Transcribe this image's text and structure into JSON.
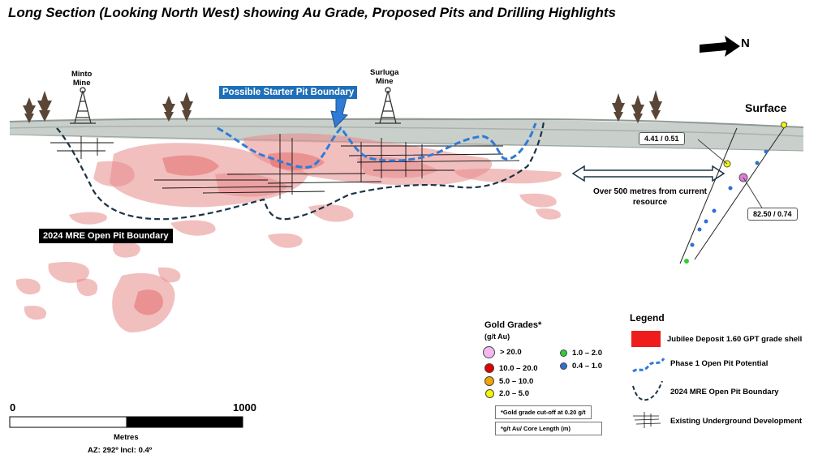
{
  "title": "Long Section (Looking North West) showing Au Grade, Proposed Pits and Drilling Highlights",
  "north_label": "N",
  "surface_label": "Surface",
  "mines": [
    {
      "name": "Minto\nMine"
    },
    {
      "name": "Surluga\nMine"
    }
  ],
  "starter_pit_label": "Possible Starter Pit Boundary",
  "mre_pit_label": "2024 MRE Open Pit Boundary",
  "distance_note": "Over 500 metres from current resource",
  "intercepts": [
    {
      "label": "4.41 / 0.51",
      "grade_class": "2.0 – 5.0"
    },
    {
      "label": "82.50 / 0.74",
      "grade_class": "> 20.0"
    }
  ],
  "gold_grades": {
    "title": "Gold Grades*",
    "unit": "(g/t Au)",
    "items": [
      {
        "label": "> 20.0",
        "color": "#f4b8f0"
      },
      {
        "label": "10.0 – 20.0",
        "color": "#e00000"
      },
      {
        "label": "5.0 – 10.0",
        "color": "#f2a500"
      },
      {
        "label": "2.0 – 5.0",
        "color": "#f5f500"
      },
      {
        "label": "1.0 – 2.0",
        "color": "#33cc33"
      },
      {
        "label": "0.4 – 1.0",
        "color": "#2f6fd0"
      }
    ],
    "notes": [
      "*Gold grade cut-off at 0.20 g/t",
      "*g/t Au/ Core Length (m)"
    ]
  },
  "legend": {
    "title": "Legend",
    "items": [
      {
        "label": "Jubilee Deposit 1.60 GPT grade shell",
        "icon": "red-square-icon",
        "color": "#ee1c1c"
      },
      {
        "label": "Phase 1 Open Pit Potential",
        "icon": "blue-dashed-line-icon",
        "color": "#2f7bd6"
      },
      {
        "label": "2024 MRE Open Pit Boundary",
        "icon": "dark-dashed-line-icon",
        "color": "#1a3344"
      },
      {
        "label": "Existing Underground  Development",
        "icon": "underground-lines-icon",
        "color": "#000000"
      }
    ]
  },
  "scale": {
    "min": "0",
    "max": "1000",
    "unit": "Metres",
    "orientation": "AZ: 292º  Incl: 0.4º"
  },
  "colors": {
    "grade_shell": "#e88a8a",
    "surface_band": "#c9cfca",
    "starter_pit": "#2f7bd6",
    "mre_pit": "#1a3344"
  }
}
